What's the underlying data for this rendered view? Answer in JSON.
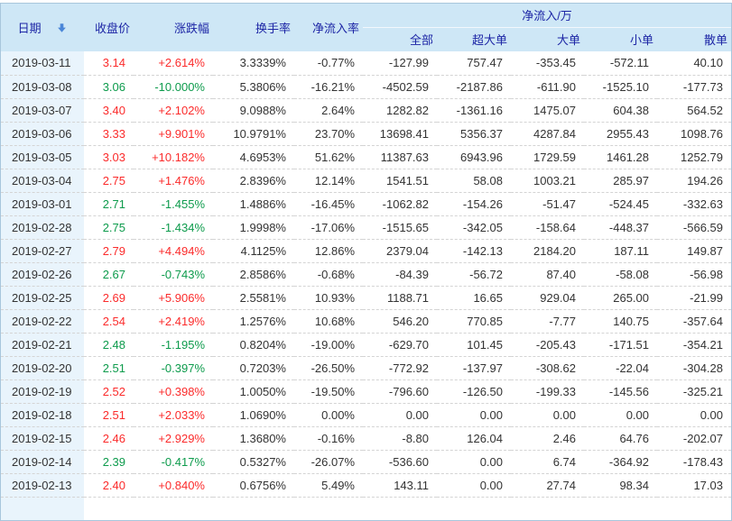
{
  "table": {
    "columns": {
      "date": "日期",
      "close": "收盘价",
      "change": "涨跌幅",
      "turnover": "换手率",
      "inflow_rate": "净流入率",
      "inflow_group": "净流入/万",
      "sub": [
        "全部",
        "超大单",
        "大单",
        "小单",
        "散单"
      ]
    },
    "sort_icon": "sort-descending-arrow",
    "rows": [
      {
        "date": "2019-03-11",
        "close": "3.14",
        "change": "+2.614%",
        "turnover": "3.3339%",
        "inflow_rate": "-0.77%",
        "all": "-127.99",
        "super_large": "757.47",
        "large": "-353.45",
        "small": "-572.11",
        "retail": "40.10"
      },
      {
        "date": "2019-03-08",
        "close": "3.06",
        "change": "-10.000%",
        "turnover": "5.3806%",
        "inflow_rate": "-16.21%",
        "all": "-4502.59",
        "super_large": "-2187.86",
        "large": "-611.90",
        "small": "-1525.10",
        "retail": "-177.73"
      },
      {
        "date": "2019-03-07",
        "close": "3.40",
        "change": "+2.102%",
        "turnover": "9.0988%",
        "inflow_rate": "2.64%",
        "all": "1282.82",
        "super_large": "-1361.16",
        "large": "1475.07",
        "small": "604.38",
        "retail": "564.52"
      },
      {
        "date": "2019-03-06",
        "close": "3.33",
        "change": "+9.901%",
        "turnover": "10.9791%",
        "inflow_rate": "23.70%",
        "all": "13698.41",
        "super_large": "5356.37",
        "large": "4287.84",
        "small": "2955.43",
        "retail": "1098.76"
      },
      {
        "date": "2019-03-05",
        "close": "3.03",
        "change": "+10.182%",
        "turnover": "4.6953%",
        "inflow_rate": "51.62%",
        "all": "11387.63",
        "super_large": "6943.96",
        "large": "1729.59",
        "small": "1461.28",
        "retail": "1252.79"
      },
      {
        "date": "2019-03-04",
        "close": "2.75",
        "change": "+1.476%",
        "turnover": "2.8396%",
        "inflow_rate": "12.14%",
        "all": "1541.51",
        "super_large": "58.08",
        "large": "1003.21",
        "small": "285.97",
        "retail": "194.26"
      },
      {
        "date": "2019-03-01",
        "close": "2.71",
        "change": "-1.455%",
        "turnover": "1.4886%",
        "inflow_rate": "-16.45%",
        "all": "-1062.82",
        "super_large": "-154.26",
        "large": "-51.47",
        "small": "-524.45",
        "retail": "-332.63"
      },
      {
        "date": "2019-02-28",
        "close": "2.75",
        "change": "-1.434%",
        "turnover": "1.9998%",
        "inflow_rate": "-17.06%",
        "all": "-1515.65",
        "super_large": "-342.05",
        "large": "-158.64",
        "small": "-448.37",
        "retail": "-566.59"
      },
      {
        "date": "2019-02-27",
        "close": "2.79",
        "change": "+4.494%",
        "turnover": "4.1125%",
        "inflow_rate": "12.86%",
        "all": "2379.04",
        "super_large": "-142.13",
        "large": "2184.20",
        "small": "187.11",
        "retail": "149.87"
      },
      {
        "date": "2019-02-26",
        "close": "2.67",
        "change": "-0.743%",
        "turnover": "2.8586%",
        "inflow_rate": "-0.68%",
        "all": "-84.39",
        "super_large": "-56.72",
        "large": "87.40",
        "small": "-58.08",
        "retail": "-56.98"
      },
      {
        "date": "2019-02-25",
        "close": "2.69",
        "change": "+5.906%",
        "turnover": "2.5581%",
        "inflow_rate": "10.93%",
        "all": "1188.71",
        "super_large": "16.65",
        "large": "929.04",
        "small": "265.00",
        "retail": "-21.99"
      },
      {
        "date": "2019-02-22",
        "close": "2.54",
        "change": "+2.419%",
        "turnover": "1.2576%",
        "inflow_rate": "10.68%",
        "all": "546.20",
        "super_large": "770.85",
        "large": "-7.77",
        "small": "140.75",
        "retail": "-357.64"
      },
      {
        "date": "2019-02-21",
        "close": "2.48",
        "change": "-1.195%",
        "turnover": "0.8204%",
        "inflow_rate": "-19.00%",
        "all": "-629.70",
        "super_large": "101.45",
        "large": "-205.43",
        "small": "-171.51",
        "retail": "-354.21"
      },
      {
        "date": "2019-02-20",
        "close": "2.51",
        "change": "-0.397%",
        "turnover": "0.7203%",
        "inflow_rate": "-26.50%",
        "all": "-772.92",
        "super_large": "-137.97",
        "large": "-308.62",
        "small": "-22.04",
        "retail": "-304.28"
      },
      {
        "date": "2019-02-19",
        "close": "2.52",
        "change": "+0.398%",
        "turnover": "1.0050%",
        "inflow_rate": "-19.50%",
        "all": "-796.60",
        "super_large": "-126.50",
        "large": "-199.33",
        "small": "-145.56",
        "retail": "-325.21"
      },
      {
        "date": "2019-02-18",
        "close": "2.51",
        "change": "+2.033%",
        "turnover": "1.0690%",
        "inflow_rate": "0.00%",
        "all": "0.00",
        "super_large": "0.00",
        "large": "0.00",
        "small": "0.00",
        "retail": "0.00"
      },
      {
        "date": "2019-02-15",
        "close": "2.46",
        "change": "+2.929%",
        "turnover": "1.3680%",
        "inflow_rate": "-0.16%",
        "all": "-8.80",
        "super_large": "126.04",
        "large": "2.46",
        "small": "64.76",
        "retail": "-202.07"
      },
      {
        "date": "2019-02-14",
        "close": "2.39",
        "change": "-0.417%",
        "turnover": "0.5327%",
        "inflow_rate": "-26.07%",
        "all": "-536.60",
        "super_large": "0.00",
        "large": "6.74",
        "small": "-364.92",
        "retail": "-178.43"
      },
      {
        "date": "2019-02-13",
        "close": "2.40",
        "change": "+0.840%",
        "turnover": "0.6756%",
        "inflow_rate": "5.49%",
        "all": "143.11",
        "super_large": "0.00",
        "large": "27.74",
        "small": "98.34",
        "retail": "17.03"
      }
    ]
  },
  "colors": {
    "header_bg": "#cee7f6",
    "header_text": "#1c25a5",
    "date_col_bg": "#e9f4fc",
    "up": "#fb2b2b",
    "down": "#0d9b4c",
    "value_text": "#333333",
    "border": "#a8c6dc",
    "row_divider": "#d4d4d4",
    "sort_icon": "#4a86d8"
  }
}
